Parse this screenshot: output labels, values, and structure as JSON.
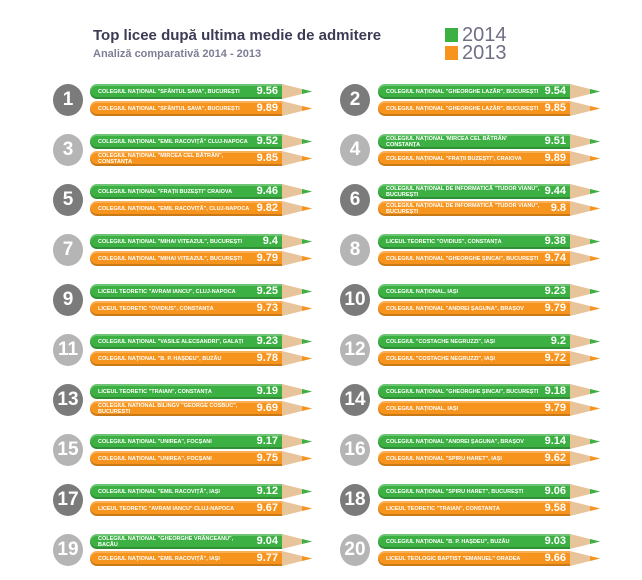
{
  "title": "Top licee după ultima medie de admitere",
  "subtitle": "Analiză comparativă 2014 - 2013",
  "colors": {
    "y2014": "#3cb043",
    "y2013": "#f7941d",
    "circle_dark": "#7b7b7b",
    "circle_light": "#b5b5b5",
    "wood": "#e8c49a"
  },
  "chart_data": {
    "type": "bar",
    "title": "Top licee după ultima medie de admitere",
    "subtitle": "Analiză comparativă 2014 - 2013",
    "legend": [
      "2014",
      "2013"
    ],
    "legend_placement": "top-right",
    "items": [
      {
        "rank": "1",
        "s2014": "COLEGIUL NAȚIONAL \"SFÂNTUL SAVA\", BUCUREȘTI",
        "v2014": "9.56",
        "s2013": "COLEGIUL NAȚIONAL \"SFÂNTUL SAVA\", BUCUREȘTI",
        "v2013": "9.89"
      },
      {
        "rank": "2",
        "s2014": "COLEGIUL NAȚIONAL \"GHEORGHE LAZĂR\", BUCUREȘTI",
        "v2014": "9.54",
        "s2013": "COLEGIUL NAȚIONAL \"GHEORGHE LAZĂR\", BUCUREȘTI",
        "v2013": "9.85"
      },
      {
        "rank": "3",
        "s2014": "COLEGIUL NAȚIONAL \"EMIL RACOVIȚĂ\" CLUJ-NAPOCA",
        "v2014": "9.52",
        "s2013": "COLEGIUL NAȚIONAL \"MIRCEA CEL BĂTRÂN\", CONSTANȚA",
        "v2013": "9.85"
      },
      {
        "rank": "4",
        "s2014": "COLEGIUL NAȚIONAL 'MIRCEA CEL BĂTRÂN' CONSTANȚA",
        "v2014": "9.51",
        "s2013": "COLEGIUL NAȚIONAL \"FRAȚII BUZEȘTI\", CRAIOVA",
        "v2013": "9.89"
      },
      {
        "rank": "5",
        "s2014": "COLEGIUL NAȚIONAL \"FRAȚII BUZEȘTI\" CRAIOVA",
        "v2014": "9.46",
        "s2013": "COLEGIUL NAȚIONAL \"EMIL RACOVIȚĂ\", CLUJ-NAPOCA",
        "v2013": "9.82"
      },
      {
        "rank": "6",
        "s2014": "COLEGIUL NAȚIONAL DE INFORMATICĂ \"TUDOR VIANU\", BUCUREȘTI",
        "v2014": "9.44",
        "s2013": "COLEGIUL NAȚIONAL DE INFORMATICĂ \"TUDOR VIANU\", BUCUREȘTI",
        "v2013": "9.8"
      },
      {
        "rank": "7",
        "s2014": "COLEGIUL NAȚIONAL \"MIHAI VITEAZUL\", BUCUREȘTI",
        "v2014": "9.4",
        "s2013": "COLEGIUL NAȚIONAL \"MIHAI VITEAZUL\", BUCUREȘTI",
        "v2013": "9.79"
      },
      {
        "rank": "8",
        "s2014": "LICEUL TEORETIC \"OVIDIUS\", CONSTANȚA",
        "v2014": "9.38",
        "s2013": "COLEGIUL NAȚIONAL \"GHEORGHE ȘINCAI\", BUCUREȘTI",
        "v2013": "9.74"
      },
      {
        "rank": "9",
        "s2014": "LICEUL TEORETIC \"AVRAM IANCU\", CLUJ-NAPOCA",
        "v2014": "9.25",
        "s2013": "LICEUL TEORETIC \"OVIDIUS\", CONSTANȚA",
        "v2013": "9.73"
      },
      {
        "rank": "10",
        "s2014": "COLEGIUL NAȚIONAL, IAȘI",
        "v2014": "9.23",
        "s2013": "COLEGIUL NAȚIONAL \"ANDREI ȘAGUNA\", BRAȘOV",
        "v2013": "9.79"
      },
      {
        "rank": "11",
        "s2014": "COLEGIUL NAȚIONAL \"VASILE ALECSANDRI\", GALAȚI",
        "v2014": "9.23",
        "s2013": "COLEGIUL NAȚIONAL \"B. P. HAȘDEU\", BUZĂU",
        "v2013": "9.78"
      },
      {
        "rank": "12",
        "s2014": "COLEGIUL \"COSTACHE NEGRUZZI\", IAȘI",
        "v2014": "9.2",
        "s2013": "COLEGIUL \"COSTACHE NEGRUZZI\", IAȘI",
        "v2013": "9.72"
      },
      {
        "rank": "13",
        "s2014": "LICEUL TEORETIC \"TRAIAN\", CONSTANȚA",
        "v2014": "9.19",
        "s2013": "COLEGIUL NATIONAL BILINGV \"GEORGE COSBUC\", BUCURESTI",
        "v2013": "9.69"
      },
      {
        "rank": "14",
        "s2014": "COLEGIUL NAȚIONAL \"GHEORGHE ȘINCAI\", BUCUREȘTI",
        "v2014": "9.18",
        "s2013": "COLEGIUL NAȚIONAL, IAȘI",
        "v2013": "9.79"
      },
      {
        "rank": "15",
        "s2014": "COLEGIUL NAȚIONAL \"UNIREA\", FOCȘANI",
        "v2014": "9.17",
        "s2013": "COLEGIUL NAȚIONAL \"UNIREA\", FOCȘANI",
        "v2013": "9.75"
      },
      {
        "rank": "16",
        "s2014": "COLEGIUL NAȚIONAL \"ANDREI ȘAGUNA\", BRAȘOV",
        "v2014": "9.14",
        "s2013": "COLEGIUL NAȚIONAL \"SPIRU HARET\", IAȘI",
        "v2013": "9.62"
      },
      {
        "rank": "17",
        "s2014": "COLEGIUL NAȚIONAL \"EMIL RACOVIȚĂ\", IAȘI",
        "v2014": "9.12",
        "s2013": "LICEUL TEORETIC \"AVRAM IANCU\" CLUJ-NAPOCA",
        "v2013": "9.67"
      },
      {
        "rank": "18",
        "s2014": "COLEGIUL NAȚIONAL \"SPIRU HARET\", BUCUREȘTI",
        "v2014": "9.06",
        "s2013": "LICEUL TEORETIC \"TRAIAN\", CONSTANȚA",
        "v2013": "9.58"
      },
      {
        "rank": "19",
        "s2014": "COLEGIUL NAȚIONAL \"GHEORGHE VRÂNCEANU\", BACĂU",
        "v2014": "9.04",
        "s2013": "COLEGIUL NAȚIONAL \"EMIL RACOVIȚĂ\", IAȘI",
        "v2013": "9.77"
      },
      {
        "rank": "20",
        "s2014": "COLEGIUL NAȚIONAL \"B. P. HAȘDEU\", BUZĂU",
        "v2014": "9.03",
        "s2013": "LICEUL TEOLOGIC BAPTIST \"EMANUEL\" ORADEA",
        "v2013": "9.66"
      }
    ]
  }
}
